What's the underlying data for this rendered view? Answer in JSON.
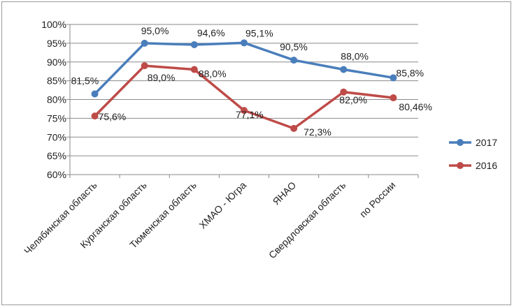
{
  "chart_data": {
    "type": "line",
    "categories": [
      "Челябинская область",
      "Курганская область",
      "Тюменская область",
      "ХМАО - Югра",
      "ЯНАО",
      "Свердловская область",
      "по России"
    ],
    "ylim": [
      60,
      100
    ],
    "yticks": [
      60,
      65,
      70,
      75,
      80,
      85,
      90,
      95,
      100
    ],
    "ytick_labels": [
      "60%",
      "65%",
      "70%",
      "75%",
      "80%",
      "85%",
      "90%",
      "95%",
      "100%"
    ],
    "grid": true,
    "legend_position": "right",
    "series": [
      {
        "name": "2017",
        "color": "#4a7ebb",
        "values": [
          81.5,
          95.0,
          94.6,
          95.1,
          90.5,
          88.0,
          85.8
        ],
        "labels": [
          "81,5%",
          "95,0%",
          "94,6%",
          "95,1%",
          "90,5%",
          "88,0%",
          "85,8%"
        ]
      },
      {
        "name": "2016",
        "color": "#be4b48",
        "values": [
          75.6,
          89.0,
          88.0,
          77.1,
          72.3,
          82.0,
          80.46
        ],
        "labels": [
          "75,6%",
          "89,0%",
          "88,0%",
          "77,1%",
          "72,3%",
          "82,0%",
          "80,46%"
        ]
      }
    ]
  }
}
